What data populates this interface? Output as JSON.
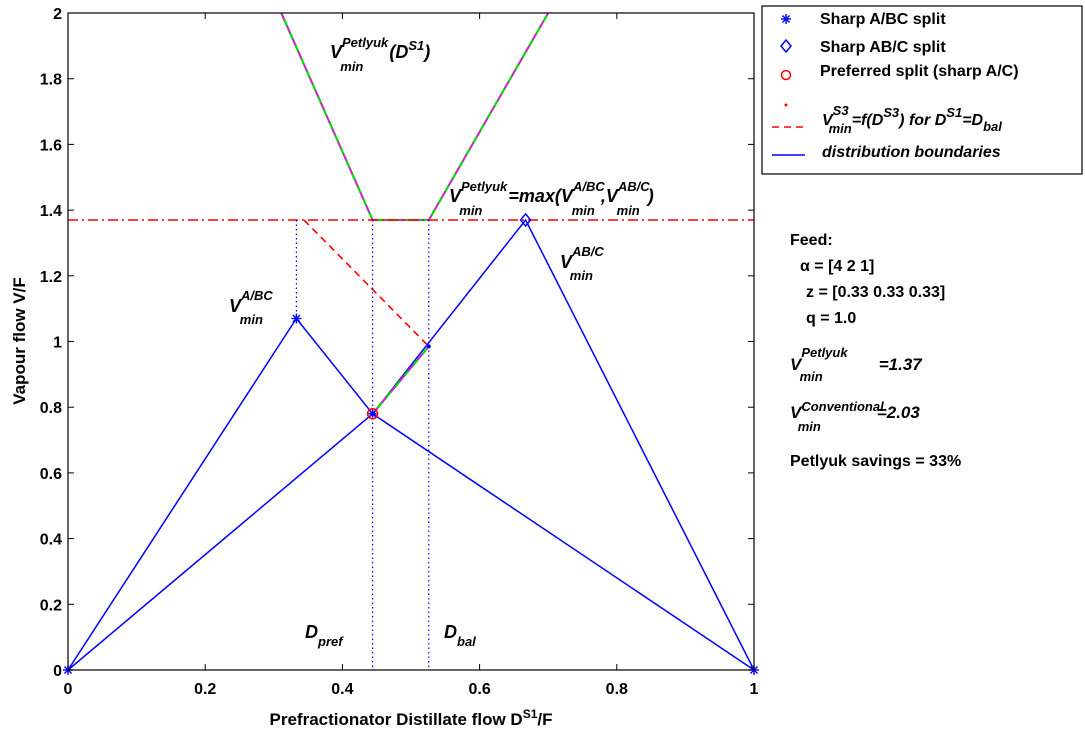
{
  "chart_data": {
    "type": "line",
    "xlabel": "Prefractionator Distillate flow D",
    "xlabel_sup": "S1",
    "xlabel_tail": "/F",
    "ylabel": "Vapour flow V/F",
    "xlim": [
      0,
      1
    ],
    "ylim": [
      0,
      2
    ],
    "x_ticks": [
      "0",
      "0.2",
      "0.4",
      "0.6",
      "0.8",
      "1"
    ],
    "x_tick_values": [
      0,
      0.2,
      0.4,
      0.6,
      0.8,
      1
    ],
    "y_ticks": [
      "0",
      "0.2",
      "0.4",
      "0.6",
      "0.8",
      "1",
      "1.2",
      "1.4",
      "1.6",
      "1.8",
      "2"
    ],
    "y_tick_values": [
      0,
      0.2,
      0.4,
      0.6,
      0.8,
      1,
      1.2,
      1.4,
      1.6,
      1.8,
      2
    ],
    "grid": false,
    "legend_position": "top-right (outside plot)",
    "colors": {
      "blue": "#0000ff",
      "red": "#ff0000",
      "green": "#00dd00",
      "magenta": "#ff00ff"
    },
    "series": [
      {
        "style": "blue-solid",
        "segments": [
          [
            [
              0,
              0
            ],
            [
              0.333,
              1.07
            ],
            [
              0.444,
              0.78
            ],
            [
              0.667,
              1.37
            ],
            [
              1,
              0
            ]
          ],
          [
            [
              0,
              0
            ],
            [
              0.444,
              0.78
            ],
            [
              1,
              0
            ]
          ]
        ]
      },
      {
        "style": "green-magenta-dashed",
        "segments": [
          [
            [
              0.311,
              2.0
            ],
            [
              0.444,
              1.37
            ],
            [
              0.526,
              1.37
            ],
            [
              0.7,
              2.0
            ]
          ],
          [
            [
              0.444,
              0.78
            ],
            [
              0.526,
              0.985
            ]
          ]
        ]
      },
      {
        "style": "red-dashdot",
        "segments": [
          [
            [
              0,
              1.37
            ],
            [
              1,
              1.37
            ]
          ]
        ]
      },
      {
        "style": "red-dashed",
        "segments": [
          [
            [
              0.344,
              1.37
            ],
            [
              0.526,
              0.985
            ]
          ]
        ]
      },
      {
        "style": "blue-dotted",
        "segments": [
          [
            [
              0.333,
              1.37
            ],
            [
              0.333,
              1.07
            ]
          ],
          [
            [
              0.444,
              1.37
            ],
            [
              0.444,
              0
            ]
          ],
          [
            [
              0.526,
              1.37
            ],
            [
              0.526,
              0
            ]
          ]
        ]
      }
    ],
    "markers": {
      "sharp_a_bc": [
        [
          0,
          0
        ],
        [
          0.333,
          1.07
        ],
        [
          1,
          0
        ]
      ],
      "sharp_ab_c": [
        [
          0.667,
          1.37
        ]
      ],
      "preferred": [
        [
          0.444,
          0.78
        ]
      ],
      "dots": [
        [
          0.526,
          0.985
        ]
      ]
    },
    "legend": [
      {
        "key": "sharp_a_bc",
        "label": "Sharp A/BC split"
      },
      {
        "key": "sharp_ab_c",
        "label": "Sharp AB/C split"
      },
      {
        "key": "preferred",
        "label": "Preferred split (sharp A/C)"
      },
      {
        "key": "v_s3",
        "label_parts": [
          "V",
          "S3",
          "min",
          "=f(D",
          "S3",
          ") for D",
          "S1",
          "=D",
          "bal"
        ]
      },
      {
        "key": "boundaries",
        "label": "distribution boundaries"
      }
    ],
    "annotations": {
      "vpet_func": {
        "base": "V",
        "sup": "Petlyuk",
        "sub": "min",
        "tail": "(D",
        "tail_sup": "S1",
        "tail_end": ")"
      },
      "vpet_max": {
        "base": "V",
        "sup": "Petlyuk",
        "sub": "min",
        "tail": "=max(V",
        "sup2": "A/BC",
        "sub2": "min",
        "mid": ",V",
        "sup3": "AB/C",
        "sub3": "min",
        "end": ")"
      },
      "v_abc": {
        "base": "V",
        "sup": "AB/C",
        "sub": "min"
      },
      "v_a_bc": {
        "base": "V",
        "sup": "A/BC",
        "sub": "min"
      },
      "d_pref": {
        "base": "D",
        "sub": "pref"
      },
      "d_bal": {
        "base": "D",
        "sub": "bal"
      }
    },
    "feed": {
      "title": "Feed:",
      "alpha": "α = [4 2 1]",
      "z": "z = [0.33 0.33 0.33]",
      "q": "q = 1.0"
    },
    "results": {
      "petlyuk": {
        "base": "V",
        "sup": "Petlyuk",
        "sub": "min",
        "value": "=1.37"
      },
      "conventional": {
        "base": "V",
        "sup": "Conventional",
        "sub": "min",
        "value": "=2.03"
      },
      "savings": "Petlyuk savings = 33%"
    }
  }
}
